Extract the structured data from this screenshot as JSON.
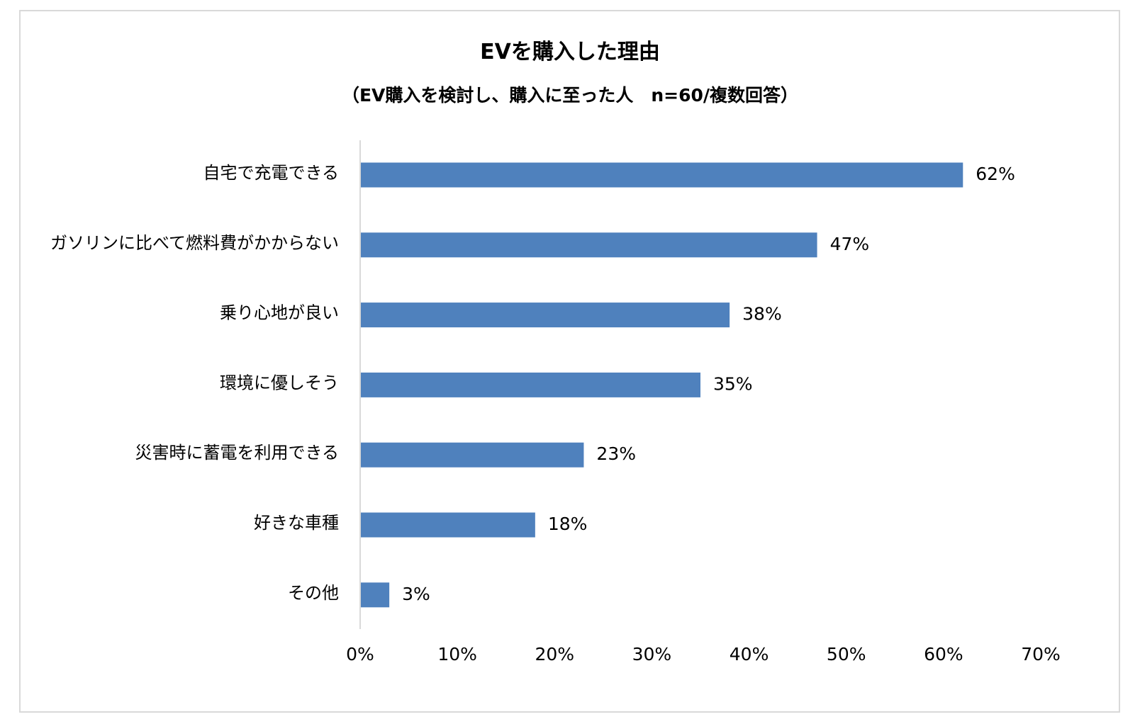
{
  "chart_data": {
    "type": "bar",
    "orientation": "horizontal",
    "title": "EVを購入した理由",
    "subtitle": "（EV購入を検討し、購入に至った人　n=60/複数回答）",
    "categories": [
      "自宅で充電できる",
      "ガソリンに比べて燃料費がかからない",
      "乗り心地が良い",
      "環境に優しそう",
      "災害時に蓄電を利用できる",
      "好きな車種",
      "その他"
    ],
    "values": [
      62,
      47,
      38,
      35,
      23,
      18,
      3
    ],
    "value_labels": [
      "62%",
      "47%",
      "38%",
      "35%",
      "23%",
      "18%",
      "3%"
    ],
    "xlim": [
      0,
      70
    ],
    "x_ticks": [
      0,
      10,
      20,
      30,
      40,
      50,
      60,
      70
    ],
    "x_tick_labels": [
      "0%",
      "10%",
      "20%",
      "30%",
      "40%",
      "50%",
      "60%",
      "70%"
    ],
    "bar_color": "#4f81bd",
    "grid": false,
    "legend": "none"
  }
}
